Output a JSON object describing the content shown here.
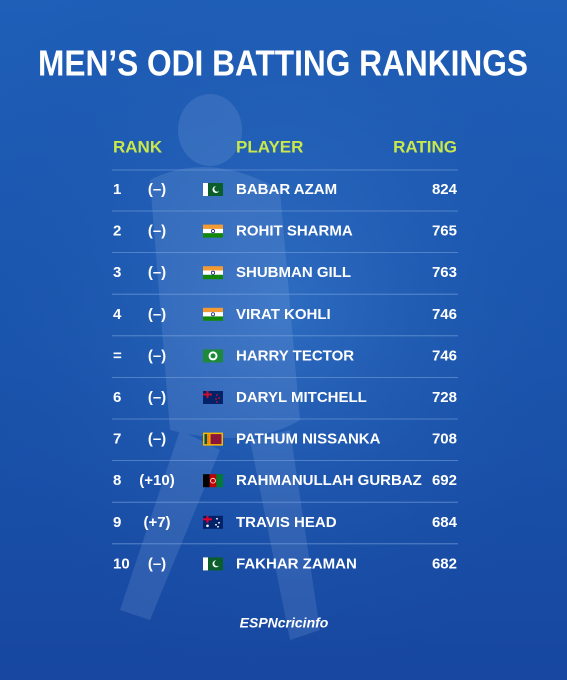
{
  "header": {
    "title": "MEN’S ODI BATTING RANKINGS"
  },
  "table": {
    "columns": [
      "RANK",
      "PLAYER",
      "RATING"
    ],
    "rows": [
      [
        1,
        "(–)",
        "BABAR AZAM",
        824
      ],
      [
        2,
        "(–)",
        "ROHIT SHARMA",
        765
      ],
      [
        3,
        "(–)",
        "SHUBMAN GILL",
        763
      ],
      [
        4,
        "(–)",
        "VIRAT KOHLI",
        746
      ],
      [
        "=",
        "(–)",
        "HARRY TECTOR",
        746
      ],
      [
        6,
        "(–)",
        "DARYL MITCHELL",
        728
      ],
      [
        7,
        "(–)",
        "PATHUM NISSANKA",
        708
      ],
      [
        8,
        "(+10)",
        "RAHMANULLAH GURBAZ",
        692
      ],
      [
        9,
        "(+7)",
        "TRAVIS HEAD",
        684
      ],
      [
        10,
        "(–)",
        "FAKHAR ZAMAN",
        682
      ]
    ]
  },
  "footer": {
    "logo": "ESPNcricinfo"
  }
}
